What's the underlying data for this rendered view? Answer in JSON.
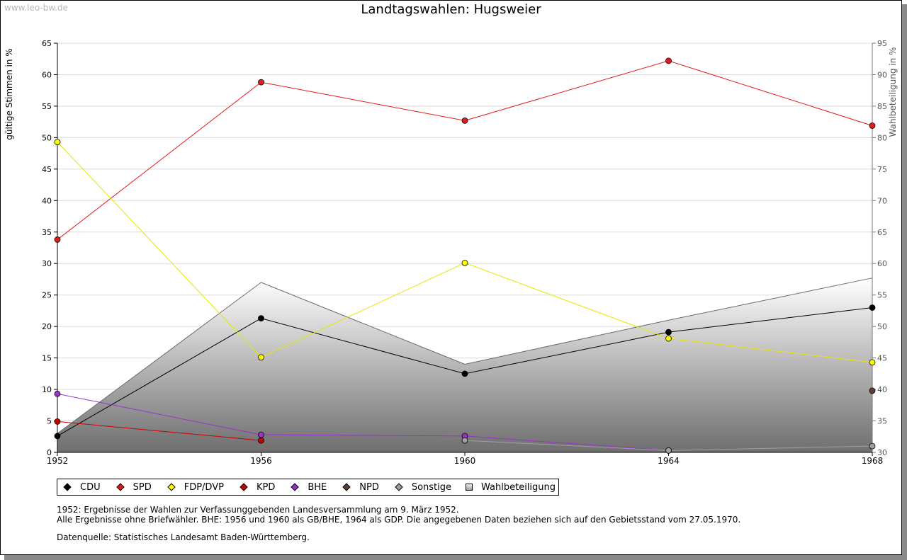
{
  "watermark": "www.leo-bw.de",
  "chart_data": {
    "type": "line",
    "title": "Landtagswahlen: Hugsweier",
    "ylabel": "gültige Stimmen in %",
    "y2label": "Wahlbeteiligung in %",
    "x": [
      1952,
      1956,
      1960,
      1964,
      1968
    ],
    "x_tick_labels": [
      "1952",
      "1956",
      "1960",
      "1964",
      "1968"
    ],
    "ylim": [
      0,
      65
    ],
    "y_ticks": [
      0,
      5,
      10,
      15,
      20,
      25,
      30,
      35,
      40,
      45,
      50,
      55,
      60,
      65
    ],
    "y2lim": [
      30,
      95
    ],
    "y2_ticks": [
      30,
      35,
      40,
      45,
      50,
      55,
      60,
      65,
      70,
      75,
      80,
      85,
      90,
      95
    ],
    "grid": true,
    "legend_placement": "bottom-left",
    "series": [
      {
        "name": "CDU",
        "color": "#000000",
        "values": [
          2.6,
          21.3,
          12.5,
          19.1,
          23.0
        ]
      },
      {
        "name": "SPD",
        "color": "#e41a1c",
        "values": [
          33.8,
          58.8,
          52.7,
          62.2,
          51.9
        ]
      },
      {
        "name": "FDP/DVP",
        "color": "#ffff00",
        "values": [
          49.3,
          15.1,
          30.1,
          18.1,
          14.3
        ]
      },
      {
        "name": "KPD",
        "color": "#cc0000",
        "values": [
          4.9,
          1.9,
          null,
          null,
          null
        ]
      },
      {
        "name": "BHE",
        "color": "#9933cc",
        "values": [
          9.3,
          2.8,
          2.6,
          0.3,
          null
        ]
      },
      {
        "name": "NPD",
        "color": "#5c4033",
        "values": [
          null,
          null,
          null,
          null,
          9.8
        ]
      },
      {
        "name": "Sonstige",
        "color": "#a0a0a0",
        "values": [
          null,
          null,
          1.9,
          0.3,
          1.0
        ]
      },
      {
        "name": "Wahlbeteiligung",
        "color": "#c8c8c8",
        "axis": "right",
        "area": true,
        "values": [
          33.0,
          57.0,
          44.0,
          51.0,
          57.7
        ]
      }
    ]
  },
  "notes": {
    "line1": "1952: Ergebnisse der Wahlen zur Verfassunggebenden Landesversammlung am 9. März 1952.",
    "line2": "Alle Ergebnisse ohne Briefwähler. BHE: 1956 und 1960 als GB/BHE, 1964 als GDP. Die angegebenen Daten beziehen sich auf den Gebietsstand vom 27.05.1970.",
    "source": "Datenquelle: Statistisches Landesamt Baden-Württemberg."
  }
}
